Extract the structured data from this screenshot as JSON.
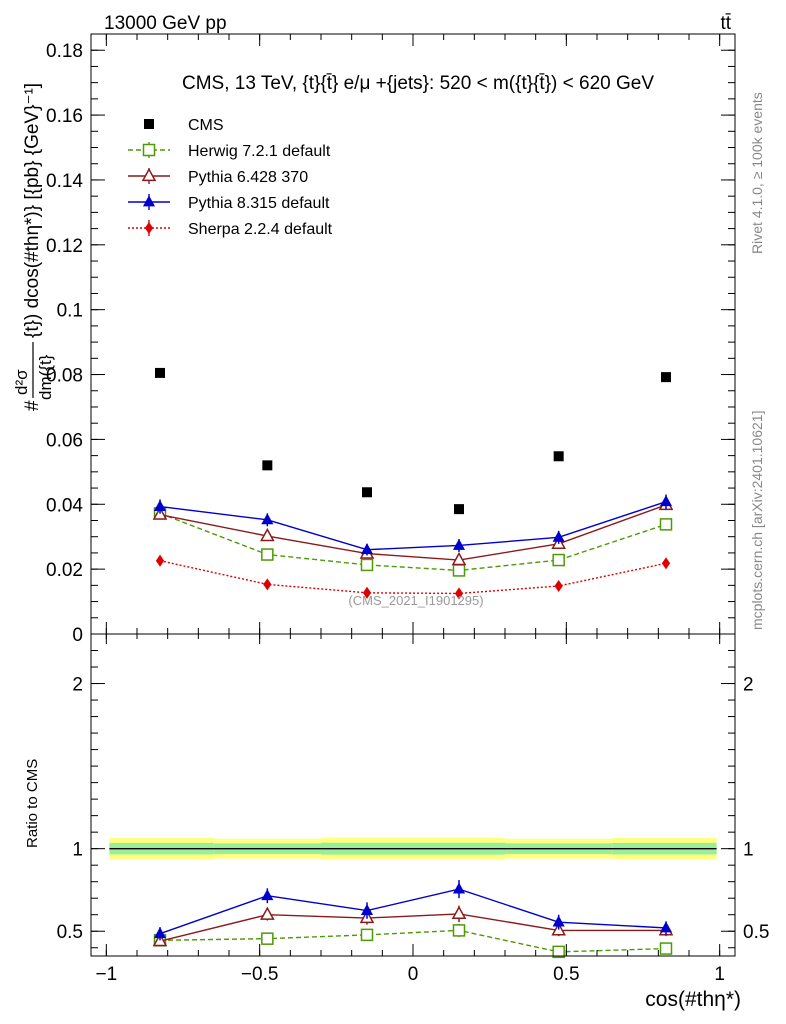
{
  "header": {
    "energy_label": "13000 GeV pp",
    "process_label": "tt̄"
  },
  "side_labels": {
    "rivet": "Rivet 4.1.0, ≥ 100k events",
    "mcplots": "mcplots.cern.ch [arXiv:2401.10621]"
  },
  "chart_data": [
    {
      "type": "line",
      "panel": "main",
      "title": "CMS, 13 TeV, {t}{t̄} e/μ +{jets}: 520 < m({t}{t̄}) < 620 GeV",
      "ylabel_parts": {
        "frac_num": "d²σ",
        "frac_den": "dm({t}",
        "suffix": "{t}) dcos(#thη*)} [{pb} {GeV}⁻¹]",
        "prefix": "#"
      },
      "xlabel": "cos(#thη*)",
      "xlim": [
        -1.05,
        1.05
      ],
      "ylim": [
        0,
        0.185
      ],
      "x_ticks": [
        -1,
        -0.5,
        0,
        0.5,
        1
      ],
      "x_tick_labels": [
        "−1",
        "−0.5",
        "0",
        "0.5",
        "1"
      ],
      "y_ticks": [
        0,
        0.02,
        0.04,
        0.06,
        0.08,
        0.1,
        0.12,
        0.14,
        0.16,
        0.18
      ],
      "y_tick_labels": [
        "0",
        "0.02",
        "0.04",
        "0.06",
        "0.08",
        "0.1",
        "0.12",
        "0.14",
        "0.16",
        "0.18"
      ],
      "watermark": "(CMS_2021_I1901295)",
      "x": [
        -0.825,
        -0.475,
        -0.15,
        0.15,
        0.475,
        0.825
      ],
      "series": [
        {
          "name": "CMS",
          "color": "#000000",
          "marker": "square-filled",
          "line": "none",
          "values": [
            0.0805,
            0.052,
            0.0437,
            0.0385,
            0.0548,
            0.0792
          ],
          "errors": [
            0,
            0,
            0,
            0,
            0,
            0
          ]
        },
        {
          "name": "Herwig 7.2.1 default",
          "color": "#4e9a06",
          "marker": "square-open",
          "line": "dashed",
          "values": [
            0.0372,
            0.0245,
            0.0213,
            0.0196,
            0.0228,
            0.0338
          ],
          "errors": [
            0.0012,
            0.0012,
            0.0012,
            0.0012,
            0.0012,
            0.0015
          ]
        },
        {
          "name": "Pythia 6.428 370",
          "color": "#8b1a1a",
          "marker": "triangle-open",
          "line": "solid",
          "values": [
            0.0368,
            0.0302,
            0.0248,
            0.0228,
            0.0278,
            0.0398
          ],
          "errors": [
            0.0012,
            0.0014,
            0.0013,
            0.0014,
            0.0014,
            0.0016
          ]
        },
        {
          "name": "Pythia 8.315 default",
          "color": "#0000cc",
          "marker": "triangle-filled",
          "line": "solid",
          "values": [
            0.0393,
            0.0352,
            0.026,
            0.0273,
            0.0298,
            0.0408
          ],
          "errors": [
            0.0022,
            0.002,
            0.0018,
            0.002,
            0.002,
            0.0022
          ]
        },
        {
          "name": "Sherpa 2.2.4 default",
          "color": "#e00000",
          "marker": "diamond-filled",
          "line": "dotted",
          "values": [
            0.0226,
            0.0153,
            0.0127,
            0.0125,
            0.0148,
            0.0218
          ],
          "errors": [
            0.0006,
            0.0006,
            0.0006,
            0.0006,
            0.0006,
            0.0006
          ]
        }
      ]
    },
    {
      "type": "line",
      "panel": "ratio",
      "ylabel": "Ratio to CMS",
      "ylim": [
        0.35,
        2.3
      ],
      "y_ticks": [
        0.5,
        1,
        2
      ],
      "y_tick_labels": [
        "0.5",
        "1",
        "2"
      ],
      "band": {
        "edges": [
          -0.99,
          -0.65,
          -0.3,
          0,
          0.3,
          0.65,
          0.99
        ],
        "yellow_halfwidth": [
          0.065,
          0.06,
          0.065,
          0.065,
          0.06,
          0.065
        ],
        "green_halfwidth": [
          0.035,
          0.032,
          0.036,
          0.036,
          0.032,
          0.035
        ]
      },
      "x": [
        -0.825,
        -0.475,
        -0.15,
        0.15,
        0.475,
        0.825
      ],
      "series": [
        {
          "name": "Herwig 7.2.1 default",
          "color": "#4e9a06",
          "marker": "square-open",
          "line": "dashed",
          "values": [
            0.445,
            0.455,
            0.478,
            0.505,
            0.375,
            0.395
          ],
          "errors": [
            0.02,
            0.035,
            0.035,
            0.04,
            0.03,
            0.03
          ]
        },
        {
          "name": "Pythia 6.428 370",
          "color": "#8b1a1a",
          "marker": "triangle-open",
          "line": "solid",
          "values": [
            0.44,
            0.6,
            0.58,
            0.605,
            0.505,
            0.505
          ],
          "errors": [
            0.02,
            0.035,
            0.04,
            0.05,
            0.035,
            0.035
          ]
        },
        {
          "name": "Pythia 8.315 default",
          "color": "#0000cc",
          "marker": "triangle-filled",
          "line": "solid",
          "values": [
            0.485,
            0.715,
            0.625,
            0.755,
            0.555,
            0.52
          ],
          "errors": [
            0.04,
            0.045,
            0.05,
            0.055,
            0.045,
            0.04
          ]
        }
      ]
    }
  ]
}
